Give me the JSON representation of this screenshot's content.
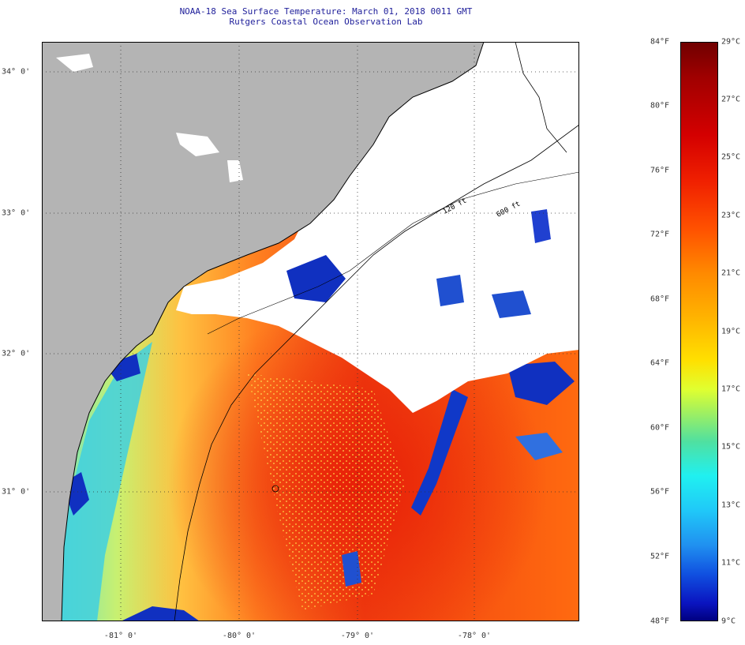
{
  "header": {
    "title": "NOAA-18 Sea Surface Temperature:  March 01, 2018 0011 GMT",
    "subtitle": "Rutgers Coastal Ocean Observation Lab"
  },
  "axes": {
    "lat_labels": [
      "34° 0'",
      "33° 0'",
      "32° 0'",
      "31° 0'"
    ],
    "lon_labels": [
      "-81° 0'",
      "-80° 0'",
      "-79° 0'",
      "-78° 0'"
    ]
  },
  "contours": {
    "shelf_label": "120 ft",
    "deep_label": "600 ft"
  },
  "colorbar": {
    "f_labels": [
      "84°F",
      "80°F",
      "76°F",
      "72°F",
      "68°F",
      "64°F",
      "60°F",
      "56°F",
      "52°F",
      "48°F"
    ],
    "c_labels": [
      "29°C",
      "27°C",
      "25°C",
      "23°C",
      "21°C",
      "19°C",
      "17°C",
      "15°C",
      "13°C",
      "11°C",
      "9°C"
    ]
  },
  "colors": {
    "land": "#b4b4b4",
    "cloud": "#ffffff",
    "warm": "#ff6a00",
    "hot": "#f03010",
    "cold": "#0a14c0",
    "cool": "#40d8d8"
  }
}
